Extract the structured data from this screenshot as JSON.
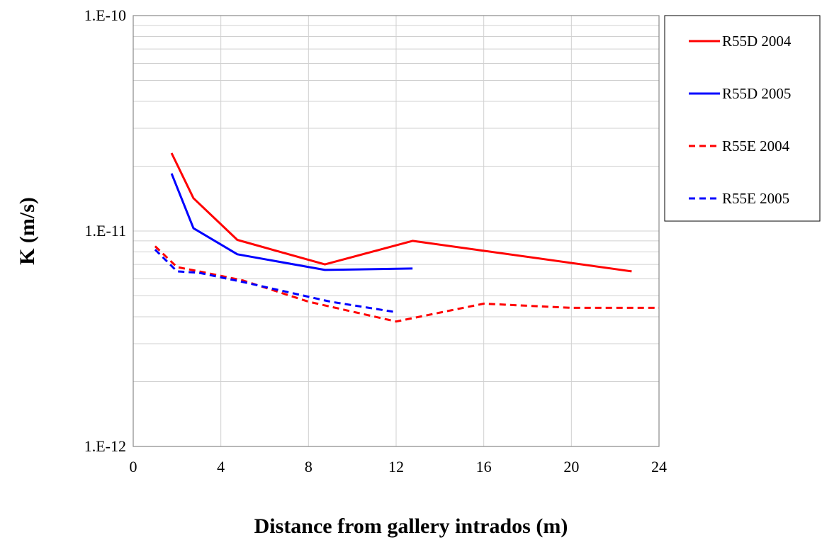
{
  "chart_data": {
    "type": "line",
    "title": "",
    "xlabel": "Distance from gallery intrados (m)",
    "ylabel": "K (m/s)",
    "xlim": [
      0,
      24
    ],
    "ylim": [
      1e-12,
      1e-10
    ],
    "yscale": "log",
    "grid": true,
    "legend_position": "right",
    "x_tick_labels": [
      "0",
      "4",
      "8",
      "12",
      "16",
      "20",
      "24"
    ],
    "x_ticks": [
      0,
      4,
      8,
      12,
      16,
      20,
      24
    ],
    "y_tick_labels": [
      "1.E-12",
      "1.E-11",
      "1.E-10"
    ],
    "y_ticks": [
      1e-12,
      1e-11,
      1e-10
    ],
    "series": [
      {
        "name": "R55D 2004",
        "color": "#ff0000",
        "dash": "solid",
        "x": [
          1.75,
          2.75,
          4.75,
          8.75,
          12.75,
          22.75
        ],
        "y": [
          2.3e-11,
          1.42e-11,
          9.1e-12,
          7e-12,
          9e-12,
          6.5e-12
        ]
      },
      {
        "name": "R55D 2005",
        "color": "#0000ff",
        "dash": "solid",
        "x": [
          1.75,
          2.75,
          4.75,
          8.75,
          12.75
        ],
        "y": [
          1.85e-11,
          1.03e-11,
          7.8e-12,
          6.6e-12,
          6.7e-12
        ]
      },
      {
        "name": "R55E 2004",
        "color": "#ff0000",
        "dash": "dashed",
        "x": [
          1.0,
          2.0,
          3.0,
          5.0,
          8.0,
          12.0,
          16.0,
          20.0,
          24.0
        ],
        "y": [
          8.5e-12,
          6.8e-12,
          6.5e-12,
          5.9e-12,
          4.7e-12,
          3.8e-12,
          4.6e-12,
          4.4e-12,
          4.4e-12
        ]
      },
      {
        "name": "R55E 2005",
        "color": "#0000ff",
        "dash": "dashed",
        "x": [
          1.0,
          2.0,
          3.0,
          5.0,
          9.0,
          12.0
        ],
        "y": [
          8.2e-12,
          6.5e-12,
          6.4e-12,
          5.8e-12,
          4.7e-12,
          4.2e-12
        ]
      }
    ]
  }
}
